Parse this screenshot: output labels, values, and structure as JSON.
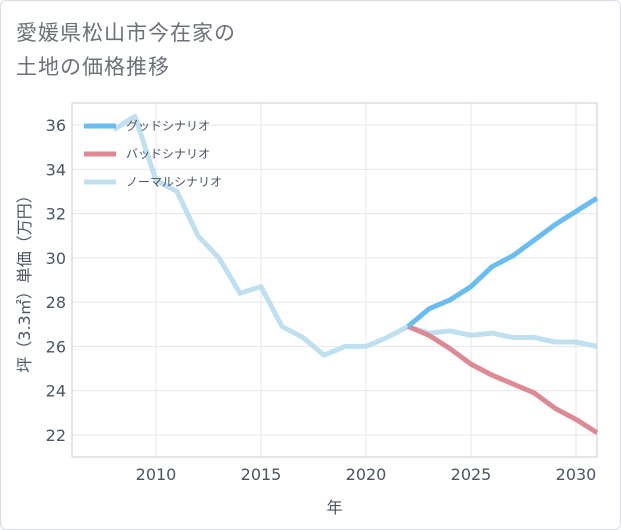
{
  "title": "愛媛県松山市今在家の\n土地の価格推移",
  "chart_data": {
    "type": "line",
    "title": "愛媛県松山市今在家の土地の価格推移",
    "xlabel": "年",
    "ylabel": "坪（3.3㎡）単価（万円）",
    "xlim": [
      2006,
      2031
    ],
    "ylim": [
      21,
      37
    ],
    "xticks": [
      2010,
      2015,
      2020,
      2025,
      2030
    ],
    "yticks": [
      22,
      24,
      26,
      28,
      30,
      32,
      34,
      36
    ],
    "grid": true,
    "legend_position": "top-left",
    "series": [
      {
        "name": "グッドシナリオ",
        "color": "#6bbcef",
        "x": [
          2022,
          2023,
          2024,
          2025,
          2026,
          2027,
          2028,
          2029,
          2030,
          2031
        ],
        "y": [
          26.9,
          27.7,
          28.1,
          28.7,
          29.6,
          30.1,
          30.8,
          31.5,
          32.1,
          32.7
        ]
      },
      {
        "name": "バッドシナリオ",
        "color": "#de8a94",
        "x": [
          2022,
          2023,
          2024,
          2025,
          2026,
          2027,
          2028,
          2029,
          2030,
          2031
        ],
        "y": [
          26.9,
          26.5,
          25.9,
          25.2,
          24.7,
          24.3,
          23.9,
          23.2,
          22.7,
          22.1
        ]
      },
      {
        "name": "ノーマルシナリオ",
        "color": "#bfe0ef",
        "x": [
          2008,
          2009,
          2010,
          2011,
          2012,
          2013,
          2014,
          2015,
          2016,
          2017,
          2018,
          2019,
          2020,
          2021,
          2022,
          2023,
          2024,
          2025,
          2026,
          2027,
          2028,
          2029,
          2030,
          2031
        ],
        "y": [
          35.8,
          36.4,
          33.5,
          33.0,
          31.0,
          30.0,
          28.4,
          28.7,
          26.9,
          26.4,
          25.6,
          26.0,
          26.0,
          26.4,
          26.9,
          26.6,
          26.7,
          26.5,
          26.6,
          26.4,
          26.4,
          26.2,
          26.2,
          26.0
        ]
      }
    ]
  }
}
